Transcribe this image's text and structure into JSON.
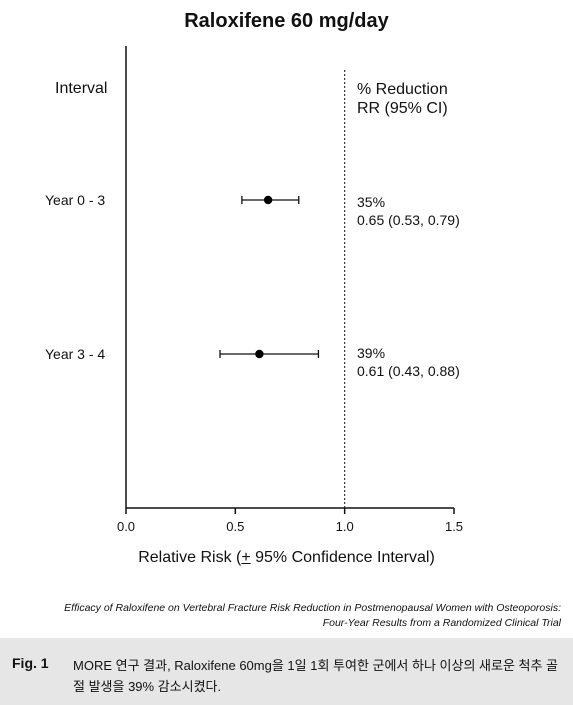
{
  "chart_data": {
    "type": "forest",
    "title": "Raloxifene 60 mg/day",
    "xlabel_pre": "Relative Risk (",
    "xlabel_pm": "+",
    "xlabel_post": " 95% Confidence Interval)",
    "xlim": [
      0.0,
      1.5
    ],
    "ticks": [
      "0.0",
      "0.5",
      "1.0",
      "1.5"
    ],
    "tick_values": [
      0.0,
      0.5,
      1.0,
      1.5
    ],
    "reference_line": 1.0,
    "left_header": "Interval",
    "right_header": [
      "% Reduction",
      "RR (95% CI)"
    ],
    "rows": [
      {
        "label": "Year 0 - 3",
        "rr": 0.65,
        "ci_low": 0.53,
        "ci_high": 0.79,
        "reduction": "35%",
        "rr_text": "0.65 (0.53, 0.79)"
      },
      {
        "label": "Year 3 - 4",
        "rr": 0.61,
        "ci_low": 0.43,
        "ci_high": 0.88,
        "reduction": "39%",
        "rr_text": "0.61 (0.43, 0.88)"
      }
    ]
  },
  "caption": {
    "line1": "Efficacy of Raloxifene on Vertebral Fracture Risk Reduction in Postmenopausal Women with Osteoporosis:",
    "line2": "Four-Year Results from a Randomized Clinical Trial"
  },
  "figure": {
    "label": "Fig. 1",
    "text": "MORE 연구 결과, Raloxifene 60mg을 1일 1회 투여한 군에서 하나 이상의 새로운 척추 골절 발생을 39% 감소시켰다."
  }
}
